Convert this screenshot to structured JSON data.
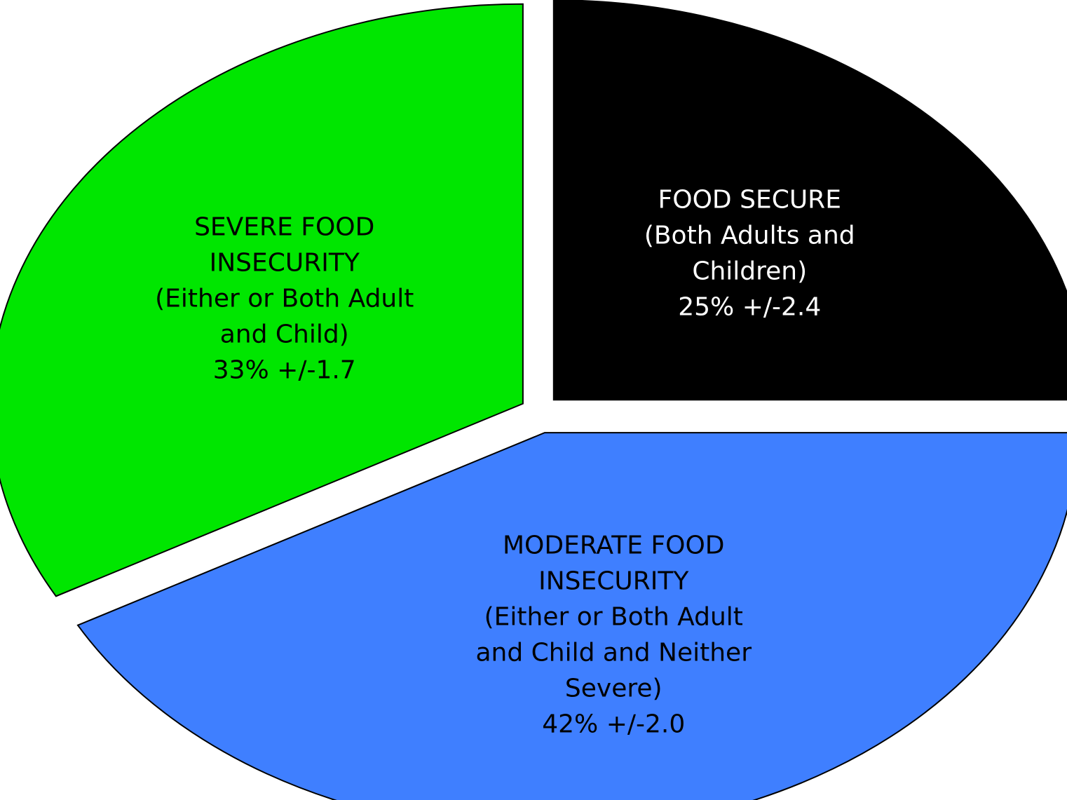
{
  "chart_data": {
    "type": "pie",
    "categories": [
      "FOOD SECURE (Both Adults and Children)",
      "MODERATE FOOD INSECURITY (Either or Both Adult and Child and Neither Severe)",
      "SEVERE FOOD INSECURITY (Either or Both Adult and Child)"
    ],
    "values": [
      25,
      42,
      33
    ],
    "margins_of_error": [
      2.4,
      2.0,
      1.7
    ],
    "slices": [
      {
        "key": "food-secure",
        "name": "FOOD SECURE (Both Adults and Children)",
        "value": 25,
        "label_lines": [
          "FOOD SECURE",
          "(Both Adults and",
          "Children)",
          "25% +/-2.4"
        ],
        "fill": "#000000",
        "text_color": "#ffffff"
      },
      {
        "key": "moderate-food-insecurity",
        "name": "MODERATE FOOD INSECURITY (Either or Both Adult and Child and Neither Severe)",
        "value": 42,
        "label_lines": [
          "MODERATE FOOD",
          "INSECURITY",
          "(Either or Both Adult",
          "and Child and Neither",
          "Severe)",
          "42% +/-2.0"
        ],
        "fill": "#3f7fff",
        "text_color": "#000000"
      },
      {
        "key": "severe-food-insecurity",
        "name": "SEVERE FOOD INSECURITY (Either or Both Adult and Child)",
        "value": 33,
        "label_lines": [
          "SEVERE FOOD",
          "INSECURITY",
          "(Either or Both Adult",
          "and Child)",
          "33% +/-1.7"
        ],
        "fill": "#00e600",
        "text_color": "#000000"
      }
    ],
    "exploded": true,
    "legend": "none",
    "title": ""
  }
}
